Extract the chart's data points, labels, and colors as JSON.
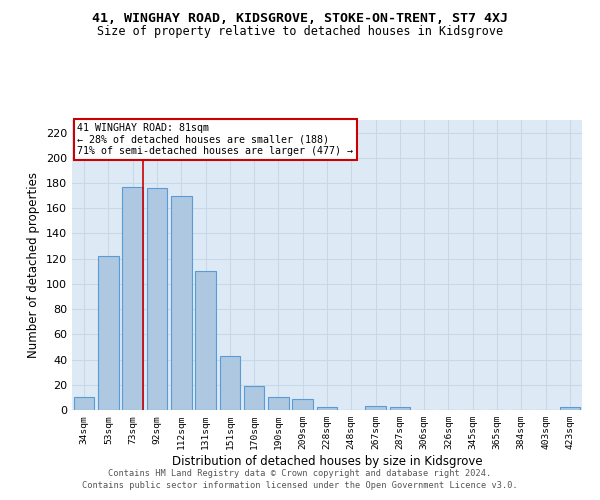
{
  "title": "41, WINGHAY ROAD, KIDSGROVE, STOKE-ON-TRENT, ST7 4XJ",
  "subtitle": "Size of property relative to detached houses in Kidsgrove",
  "xlabel": "Distribution of detached houses by size in Kidsgrove",
  "ylabel": "Number of detached properties",
  "bar_color": "#adc8e0",
  "bar_edge_color": "#5b9bd5",
  "categories": [
    "34sqm",
    "53sqm",
    "73sqm",
    "92sqm",
    "112sqm",
    "131sqm",
    "151sqm",
    "170sqm",
    "190sqm",
    "209sqm",
    "228sqm",
    "248sqm",
    "267sqm",
    "287sqm",
    "306sqm",
    "326sqm",
    "345sqm",
    "365sqm",
    "384sqm",
    "403sqm",
    "423sqm"
  ],
  "values": [
    10,
    122,
    177,
    176,
    170,
    110,
    43,
    19,
    10,
    9,
    2,
    0,
    3,
    2,
    0,
    0,
    0,
    0,
    0,
    0,
    2
  ],
  "ylim": [
    0,
    230
  ],
  "yticks": [
    0,
    20,
    40,
    60,
    80,
    100,
    120,
    140,
    160,
    180,
    200,
    220
  ],
  "property_line_x": 2.42,
  "annotation_title": "41 WINGHAY ROAD: 81sqm",
  "annotation_line1": "← 28% of detached houses are smaller (188)",
  "annotation_line2": "71% of semi-detached houses are larger (477) →",
  "annotation_box_color": "#ffffff",
  "annotation_box_edge": "#cc0000",
  "vline_color": "#cc0000",
  "grid_color": "#c8d8e8",
  "background_color": "#ddeaf5",
  "fig_background": "#ffffff",
  "footer_line1": "Contains HM Land Registry data © Crown copyright and database right 2024.",
  "footer_line2": "Contains public sector information licensed under the Open Government Licence v3.0."
}
